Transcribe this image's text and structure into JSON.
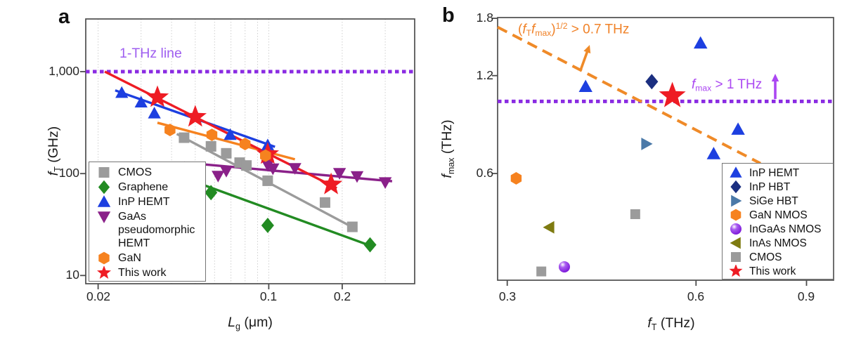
{
  "chart_data": [
    {
      "panel": "a",
      "panel_label": "a",
      "type": "scatter",
      "xscale": "log",
      "yscale": "log",
      "xlabel_segments": [
        {
          "t": "L",
          "s": "i"
        },
        {
          "t": "g",
          "s": "sub"
        },
        {
          "t": " (μm)",
          "s": ""
        }
      ],
      "ylabel_segments": [
        {
          "t": "f",
          "s": "i"
        },
        {
          "t": "T",
          "s": "sub"
        },
        {
          "t": " (GHz)",
          "s": ""
        }
      ],
      "xlim": [
        0.0178,
        0.396
      ],
      "ylim": [
        8.3,
        3290
      ],
      "xticks": [
        {
          "v": 0.02,
          "l": "0.02"
        },
        {
          "v": 0.1,
          "l": "0.1"
        },
        {
          "v": 0.2,
          "l": "0.2"
        }
      ],
      "yticks": [
        {
          "v": 1000,
          "l": "1,000"
        },
        {
          "v": 100,
          "l": "100"
        },
        {
          "v": 10,
          "l": "10"
        }
      ],
      "grid_x": [
        0.02,
        0.03,
        0.04,
        0.05,
        0.06,
        0.07,
        0.08,
        0.09,
        0.1,
        0.2,
        0.3
      ],
      "ref_line": {
        "value": 1000,
        "color": "#8a2be2",
        "label": "1-THz line",
        "label_color": "#9f5ff0"
      },
      "series": [
        {
          "name": "CMOS",
          "marker": "square",
          "color": "#9b9b9b",
          "size": 15,
          "points": [
            [
              0.045,
              225
            ],
            [
              0.058,
              185
            ],
            [
              0.067,
              158
            ],
            [
              0.076,
              128
            ],
            [
              0.081,
              120
            ],
            [
              0.099,
              85
            ],
            [
              0.17,
              52
            ],
            [
              0.22,
              30
            ]
          ],
          "trend": [
            [
              0.042,
              245
            ],
            [
              0.225,
              29
            ]
          ]
        },
        {
          "name": "Graphene",
          "marker": "diamond",
          "color": "#228b22",
          "size": 19,
          "points": [
            [
              0.058,
              65
            ],
            [
              0.099,
              31
            ],
            [
              0.26,
              20
            ]
          ],
          "trend": [
            [
              0.055,
              76
            ],
            [
              0.27,
              19
            ]
          ]
        },
        {
          "name": "InP HEMT",
          "marker": "triangle-up",
          "color": "#1d3fe0",
          "size": 17,
          "points": [
            [
              0.025,
              620
            ],
            [
              0.03,
              500
            ],
            [
              0.034,
              390
            ],
            [
              0.0695,
              240
            ],
            [
              0.099,
              190
            ]
          ],
          "trend": [
            [
              0.0235,
              655
            ],
            [
              0.106,
              183
            ]
          ]
        },
        {
          "name": "GaAs pseudomorphic HEMT",
          "marker": "triangle-down",
          "color": "#8a2089",
          "size": 17,
          "points": [
            [
              0.0405,
              95
            ],
            [
              0.044,
              104
            ],
            [
              0.062,
              95
            ],
            [
              0.067,
              106
            ],
            [
              0.099,
              121
            ],
            [
              0.104,
              112
            ],
            [
              0.128,
              113
            ],
            [
              0.195,
              101
            ],
            [
              0.23,
              94
            ],
            [
              0.3,
              82
            ]
          ],
          "trend": [
            [
              0.045,
              128
            ],
            [
              0.32,
              84
            ]
          ]
        },
        {
          "name": "GaN",
          "marker": "hexagon",
          "color": "#f6821f",
          "size": 17,
          "points": [
            [
              0.0394,
              268
            ],
            [
              0.0585,
              240
            ],
            [
              0.08,
              195
            ],
            [
              0.097,
              150
            ]
          ],
          "trend": [
            [
              0.035,
              315
            ],
            [
              0.128,
              138
            ]
          ]
        },
        {
          "name": "This work",
          "marker": "star",
          "color": "#ee1c24",
          "size": 34,
          "points": [
            [
              0.035,
              560
            ],
            [
              0.05,
              360
            ],
            [
              0.099,
              155
            ],
            [
              0.18,
              78
            ]
          ],
          "trend": [
            [
              0.0213,
              1000
            ],
            [
              0.19,
              72
            ]
          ]
        }
      ],
      "redraw_top": {
        "series": "GaN",
        "point": [
          0.097,
          150
        ]
      }
    },
    {
      "panel": "b",
      "panel_label": "b",
      "type": "scatter",
      "xscale": "log",
      "yscale": "log",
      "xlabel_segments": [
        {
          "t": "f",
          "s": "i"
        },
        {
          "t": "T",
          "s": "sub"
        },
        {
          "t": " (THz)",
          "s": ""
        }
      ],
      "ylabel_segments": [
        {
          "t": "f",
          "s": "i"
        },
        {
          "t": "max",
          "s": "sub"
        },
        {
          "t": " (THz)",
          "s": ""
        }
      ],
      "xlim": [
        0.2896,
        0.994
      ],
      "ylim": [
        0.282,
        1.81
      ],
      "xticks": [
        {
          "v": 0.3,
          "l": "0.3"
        },
        {
          "v": 0.6,
          "l": "0.6"
        },
        {
          "v": 0.9,
          "l": "0.9"
        }
      ],
      "yticks": [
        {
          "v": 1.8,
          "l": "1.8"
        },
        {
          "v": 1.2,
          "l": "1.2"
        },
        {
          "v": 0.6,
          "l": "0.6"
        }
      ],
      "hline": {
        "value": 1.0,
        "color": "#8a2be2"
      },
      "hyperbola": {
        "product": 0.49,
        "x1": 0.2896,
        "x2": 0.76,
        "color": "#ef8a28"
      },
      "annotations": [
        {
          "id": "pair-limit",
          "segments": [
            {
              "t": "(",
              "s": ""
            },
            {
              "t": "f",
              "s": "i"
            },
            {
              "t": "T",
              "s": "sub"
            },
            {
              "t": "f",
              "s": "i"
            },
            {
              "t": "max",
              "s": "sub"
            },
            {
              "t": ")",
              "s": ""
            },
            {
              "t": "1/2",
              "s": "sup"
            },
            {
              "t": " > 0.7 THz",
              "s": ""
            }
          ],
          "color": "#f08228"
        },
        {
          "id": "fmax-limit",
          "segments": [
            {
              "t": "f",
              "s": "i"
            },
            {
              "t": "max",
              "s": "sub"
            },
            {
              "t": " > 1 THz",
              "s": ""
            }
          ],
          "color": "#ab47f2"
        }
      ],
      "series": [
        {
          "name": "InP HEMT",
          "marker": "triangle-up",
          "color": "#1d3fe0",
          "size": 18,
          "points": [
            [
              0.61,
              1.51
            ],
            [
              0.4,
              1.11
            ],
            [
              0.7,
              0.82
            ],
            [
              0.64,
              0.69
            ]
          ]
        },
        {
          "name": "InP HBT",
          "marker": "diamond",
          "color": "#1b2f80",
          "size": 19,
          "points": [
            [
              0.51,
              1.15
            ]
          ]
        },
        {
          "name": "SiGe HBT",
          "marker": "triangle-right",
          "color": "#4b79a8",
          "size": 17,
          "points": [
            [
              0.5,
              0.74
            ]
          ]
        },
        {
          "name": "GaN NMOS",
          "marker": "hexagon",
          "color": "#f6821f",
          "size": 17,
          "points": [
            [
              0.31,
              0.58
            ]
          ]
        },
        {
          "name": "InGaAs NMOS",
          "marker": "sphere",
          "color": "#8820e8",
          "size": 16,
          "points": [
            [
              0.37,
              0.31
            ]
          ]
        },
        {
          "name": "InAs NMOS",
          "marker": "triangle-left",
          "color": "#7e7b11",
          "size": 17,
          "points": [
            [
              0.35,
              0.41
            ]
          ]
        },
        {
          "name": "CMOS",
          "marker": "square",
          "color": "#9b9b9b",
          "size": 14,
          "points": [
            [
              0.48,
              0.45
            ],
            [
              0.34,
              0.3
            ]
          ]
        },
        {
          "name": "This work",
          "marker": "star",
          "color": "#ee1c24",
          "size": 40,
          "points": [
            [
              0.55,
              1.04
            ]
          ]
        }
      ]
    }
  ]
}
